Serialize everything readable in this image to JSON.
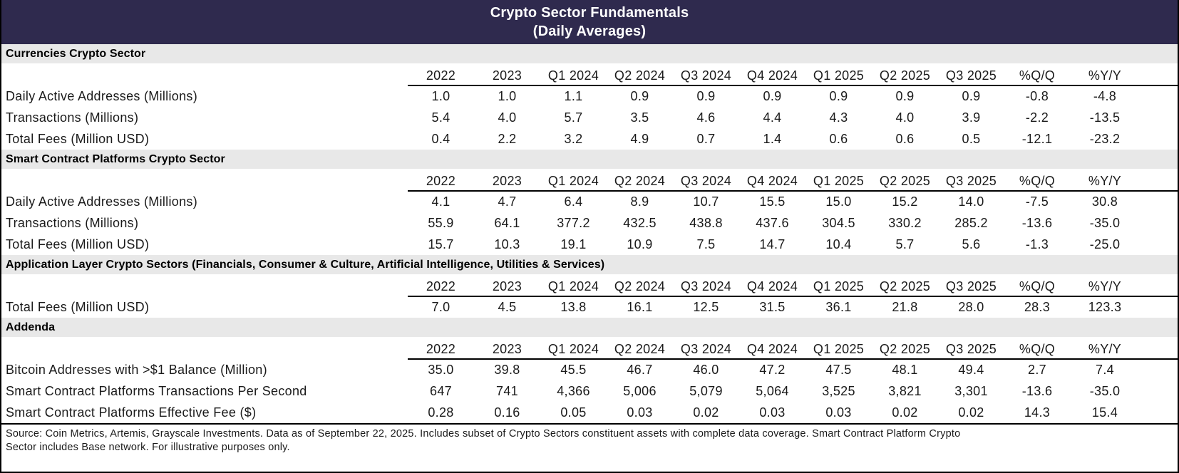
{
  "title": {
    "line1": "Crypto Sector Fundamentals",
    "line2": "(Daily Averages)"
  },
  "colors": {
    "title_bar_bg": "#2F2A4E",
    "title_text": "#FFFFFF",
    "section_band_bg": "#E8E8E8",
    "body_text": "#1A1A1A",
    "rule_lines": "#000000"
  },
  "chart_data": {
    "type": "table",
    "title": "Crypto Sector Fundamentals (Daily Averages)",
    "columns": [
      "2022",
      "2023",
      "Q1 2024",
      "Q2 2024",
      "Q3 2024",
      "Q4 2024",
      "Q1 2025",
      "Q2 2025",
      "Q3 2025",
      "%Q/Q",
      "%Y/Y"
    ],
    "sections": [
      {
        "header": "Currencies Crypto Sector",
        "rows": [
          {
            "label": "Daily Active Addresses (Millions)",
            "values": [
              "1.0",
              "1.0",
              "1.1",
              "0.9",
              "0.9",
              "0.9",
              "0.9",
              "0.9",
              "0.9",
              "-0.8",
              "-4.8"
            ]
          },
          {
            "label": "Transactions (Millions)",
            "values": [
              "5.4",
              "4.0",
              "5.7",
              "3.5",
              "4.6",
              "4.4",
              "4.3",
              "4.0",
              "3.9",
              "-2.2",
              "-13.5"
            ]
          },
          {
            "label": "Total Fees (Million USD)",
            "values": [
              "0.4",
              "2.2",
              "3.2",
              "4.9",
              "0.7",
              "1.4",
              "0.6",
              "0.6",
              "0.5",
              "-12.1",
              "-23.2"
            ]
          }
        ]
      },
      {
        "header": "Smart Contract Platforms Crypto Sector",
        "rows": [
          {
            "label": "Daily Active Addresses (Millions)",
            "values": [
              "4.1",
              "4.7",
              "6.4",
              "8.9",
              "10.7",
              "15.5",
              "15.0",
              "15.2",
              "14.0",
              "-7.5",
              "30.8"
            ]
          },
          {
            "label": "Transactions (Millions)",
            "values": [
              "55.9",
              "64.1",
              "377.2",
              "432.5",
              "438.8",
              "437.6",
              "304.5",
              "330.2",
              "285.2",
              "-13.6",
              "-35.0"
            ]
          },
          {
            "label": "Total Fees (Million USD)",
            "values": [
              "15.7",
              "10.3",
              "19.1",
              "10.9",
              "7.5",
              "14.7",
              "10.4",
              "5.7",
              "5.6",
              "-1.3",
              "-25.0"
            ]
          }
        ]
      },
      {
        "header": "Application Layer Crypto Sectors (Financials, Consumer & Culture, Artificial Intelligence, Utilities & Services)",
        "rows": [
          {
            "label": "Total Fees (Million USD)",
            "values": [
              "7.0",
              "4.5",
              "13.8",
              "16.1",
              "12.5",
              "31.5",
              "36.1",
              "21.8",
              "28.0",
              "28.3",
              "123.3"
            ]
          }
        ]
      },
      {
        "header": "Addenda",
        "rows": [
          {
            "label": "Bitcoin Addresses with >$1 Balance (Million)",
            "values": [
              "35.0",
              "39.8",
              "45.5",
              "46.7",
              "46.0",
              "47.2",
              "47.5",
              "48.1",
              "49.4",
              "2.7",
              "7.4"
            ]
          },
          {
            "label": "Smart Contract Platforms Transactions Per Second",
            "values": [
              "647",
              "741",
              "4,366",
              "5,006",
              "5,079",
              "5,064",
              "3,525",
              "3,821",
              "3,301",
              "-13.6",
              "-35.0"
            ]
          },
          {
            "label": "Smart Contract Platforms Effective Fee ($)",
            "values": [
              "0.28",
              "0.16",
              "0.05",
              "0.03",
              "0.02",
              "0.03",
              "0.03",
              "0.02",
              "0.02",
              "14.3",
              "15.4"
            ]
          }
        ]
      }
    ]
  },
  "footnote": {
    "line1": "Source: Coin Metrics, Artemis, Grayscale Investments. Data as of September 22, 2025. Includes subset of Crypto Sectors constituent assets with complete data coverage. Smart Contract Platform Crypto",
    "line2": "Sector includes Base network. For illustrative purposes only."
  }
}
